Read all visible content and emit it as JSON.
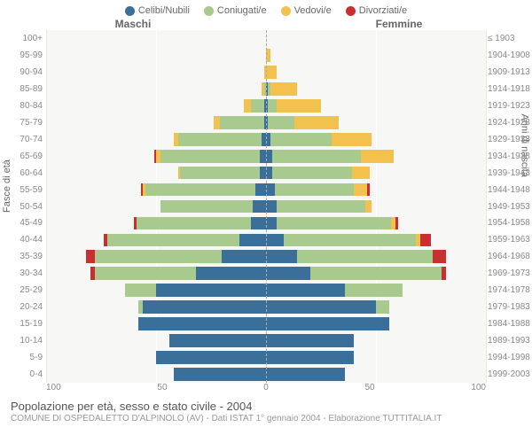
{
  "colors": {
    "celibi": "#3a6f9a",
    "coniugati": "#a8ca8e",
    "vedovi": "#f2c14e",
    "divorziati": "#c73030",
    "plot_bg": "#f7f7f5",
    "grid": "#ffffff",
    "grid_soft": "#e9e9e2"
  },
  "legend": [
    {
      "label": "Celibi/Nubili",
      "colorKey": "celibi"
    },
    {
      "label": "Coniugati/e",
      "colorKey": "coniugati"
    },
    {
      "label": "Vedovi/e",
      "colorKey": "vedovi"
    },
    {
      "label": "Divorziati/e",
      "colorKey": "divorziati"
    }
  ],
  "headers": {
    "left": "Maschi",
    "right": "Femmine"
  },
  "axis_labels": {
    "left": "Fasce di età",
    "right": "Anni di nascita"
  },
  "xlim": 100,
  "xticks": [
    100,
    50,
    0,
    50,
    100
  ],
  "age_labels": [
    "100+",
    "95-99",
    "90-94",
    "85-89",
    "80-84",
    "75-79",
    "70-74",
    "65-69",
    "60-64",
    "55-59",
    "50-54",
    "45-49",
    "40-44",
    "35-39",
    "30-34",
    "25-29",
    "20-24",
    "15-19",
    "10-14",
    "5-9",
    "0-4"
  ],
  "birth_labels": [
    "≤ 1903",
    "1904-1908",
    "1909-1913",
    "1914-1918",
    "1919-1923",
    "1924-1928",
    "1929-1933",
    "1934-1938",
    "1939-1943",
    "1944-1948",
    "1949-1953",
    "1954-1958",
    "1959-1963",
    "1964-1968",
    "1969-1973",
    "1974-1978",
    "1979-1983",
    "1984-1988",
    "1989-1993",
    "1994-1998",
    "1999-2003"
  ],
  "rows": [
    {
      "m": {
        "c": 0,
        "k": 0,
        "v": 0,
        "d": 0
      },
      "f": {
        "c": 0,
        "k": 0,
        "v": 0,
        "d": 0
      }
    },
    {
      "m": {
        "c": 0,
        "k": 0,
        "v": 0,
        "d": 0
      },
      "f": {
        "c": 0,
        "k": 0,
        "v": 2,
        "d": 0
      }
    },
    {
      "m": {
        "c": 0,
        "k": 0,
        "v": 1,
        "d": 0
      },
      "f": {
        "c": 0,
        "k": 0,
        "v": 5,
        "d": 0
      }
    },
    {
      "m": {
        "c": 0,
        "k": 1,
        "v": 1,
        "d": 0
      },
      "f": {
        "c": 1,
        "k": 1,
        "v": 12,
        "d": 0
      }
    },
    {
      "m": {
        "c": 1,
        "k": 6,
        "v": 3,
        "d": 0
      },
      "f": {
        "c": 1,
        "k": 4,
        "v": 20,
        "d": 0
      }
    },
    {
      "m": {
        "c": 1,
        "k": 20,
        "v": 3,
        "d": 0
      },
      "f": {
        "c": 1,
        "k": 12,
        "v": 20,
        "d": 0
      }
    },
    {
      "m": {
        "c": 2,
        "k": 38,
        "v": 2,
        "d": 0
      },
      "f": {
        "c": 2,
        "k": 28,
        "v": 18,
        "d": 0
      }
    },
    {
      "m": {
        "c": 3,
        "k": 45,
        "v": 2,
        "d": 1
      },
      "f": {
        "c": 3,
        "k": 40,
        "v": 15,
        "d": 0
      }
    },
    {
      "m": {
        "c": 3,
        "k": 36,
        "v": 1,
        "d": 0
      },
      "f": {
        "c": 3,
        "k": 36,
        "v": 8,
        "d": 0
      }
    },
    {
      "m": {
        "c": 5,
        "k": 50,
        "v": 1,
        "d": 1
      },
      "f": {
        "c": 4,
        "k": 36,
        "v": 6,
        "d": 1
      }
    },
    {
      "m": {
        "c": 6,
        "k": 42,
        "v": 0,
        "d": 0
      },
      "f": {
        "c": 5,
        "k": 40,
        "v": 3,
        "d": 0
      }
    },
    {
      "m": {
        "c": 7,
        "k": 52,
        "v": 0,
        "d": 1
      },
      "f": {
        "c": 5,
        "k": 52,
        "v": 2,
        "d": 1
      }
    },
    {
      "m": {
        "c": 12,
        "k": 60,
        "v": 0,
        "d": 2
      },
      "f": {
        "c": 8,
        "k": 60,
        "v": 2,
        "d": 5
      }
    },
    {
      "m": {
        "c": 20,
        "k": 58,
        "v": 0,
        "d": 4
      },
      "f": {
        "c": 14,
        "k": 62,
        "v": 0,
        "d": 6
      }
    },
    {
      "m": {
        "c": 32,
        "k": 46,
        "v": 0,
        "d": 2
      },
      "f": {
        "c": 20,
        "k": 60,
        "v": 0,
        "d": 2
      }
    },
    {
      "m": {
        "c": 50,
        "k": 14,
        "v": 0,
        "d": 0
      },
      "f": {
        "c": 36,
        "k": 26,
        "v": 0,
        "d": 0
      }
    },
    {
      "m": {
        "c": 56,
        "k": 2,
        "v": 0,
        "d": 0
      },
      "f": {
        "c": 50,
        "k": 6,
        "v": 0,
        "d": 0
      }
    },
    {
      "m": {
        "c": 58,
        "k": 0,
        "v": 0,
        "d": 0
      },
      "f": {
        "c": 56,
        "k": 0,
        "v": 0,
        "d": 0
      }
    },
    {
      "m": {
        "c": 44,
        "k": 0,
        "v": 0,
        "d": 0
      },
      "f": {
        "c": 40,
        "k": 0,
        "v": 0,
        "d": 0
      }
    },
    {
      "m": {
        "c": 50,
        "k": 0,
        "v": 0,
        "d": 0
      },
      "f": {
        "c": 40,
        "k": 0,
        "v": 0,
        "d": 0
      }
    },
    {
      "m": {
        "c": 42,
        "k": 0,
        "v": 0,
        "d": 0
      },
      "f": {
        "c": 36,
        "k": 0,
        "v": 0,
        "d": 0
      }
    }
  ],
  "title": "Popolazione per età, sesso e stato civile - 2004",
  "subtitle": "COMUNE DI OSPEDALETTO D'ALPINOLO (AV) - Dati ISTAT 1° gennaio 2004 - Elaborazione TUTTITALIA.IT",
  "fontsize": {
    "legend": 11,
    "tick": 10,
    "title": 13,
    "subtitle": 10
  }
}
